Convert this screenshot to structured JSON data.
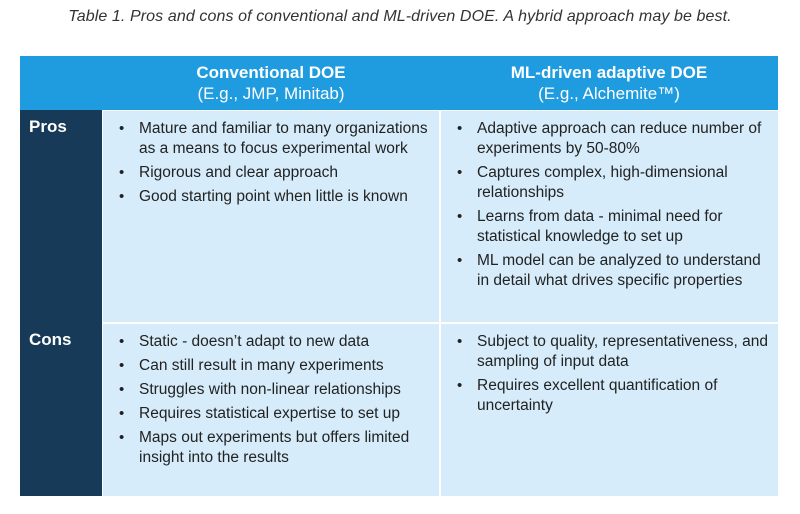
{
  "caption": "Table 1. Pros and cons of conventional and ML-driven DOE. A hybrid approach may be best.",
  "colors": {
    "header_bg": "#1f9be0",
    "label_bg": "#163a57",
    "cell_bg": "#d6ecfa"
  },
  "columns": [
    {
      "title": "Conventional DOE",
      "subtitle": "(E.g., JMP, Minitab)"
    },
    {
      "title": "ML-driven adaptive DOE",
      "subtitle": "(E.g., Alchemite™)"
    }
  ],
  "rows": [
    {
      "label": "Pros",
      "conventional": [
        "Mature and familiar to many organizations as a means to focus experimental work",
        "Rigorous and clear approach",
        "Good starting point when little is known"
      ],
      "ml": [
        "Adaptive approach can reduce number of experiments by 50-80%",
        "Captures complex, high-dimensional relationships",
        "Learns from data - minimal need for statistical knowledge to set up",
        "ML model can be analyzed to understand in detail what drives specific properties"
      ]
    },
    {
      "label": "Cons",
      "conventional": [
        "Static - doesn’t adapt to new data",
        "Can still result in many experiments",
        "Struggles with non-linear relationships",
        "Requires statistical expertise to set up",
        "Maps out experiments but offers limited insight into the results"
      ],
      "ml": [
        "Subject to quality, representativeness, and sampling of input data",
        "Requires excellent quantification of uncertainty"
      ]
    }
  ]
}
